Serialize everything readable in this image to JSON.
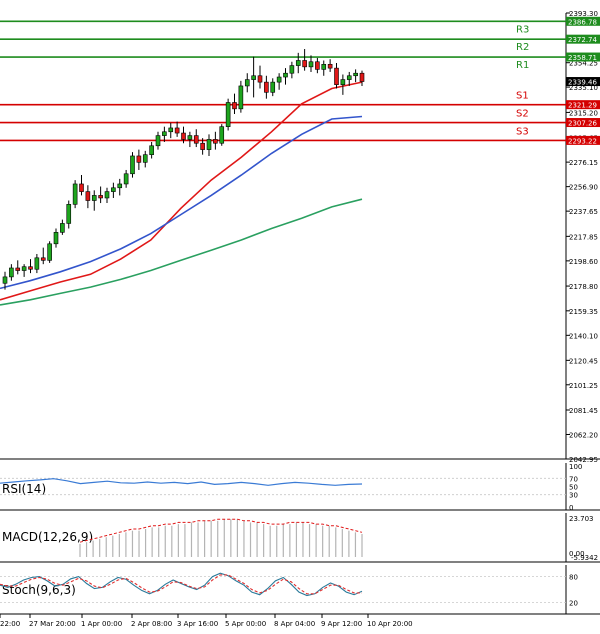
{
  "chart_data": [
    {
      "panel": "price",
      "type": "candlestick",
      "ylim": [
        2042.95,
        2393.3
      ],
      "ticks": [
        "2393.30",
        "2374.30",
        "2354.25",
        "2335.10",
        "2315.20",
        "2295.65",
        "2276.15",
        "2256.90",
        "2237.65",
        "2217.85",
        "2198.60",
        "2178.80",
        "2159.35",
        "2140.10",
        "2120.45",
        "2101.25",
        "2081.45",
        "2062.20",
        "2042.95"
      ],
      "x_tick_labels": [
        "22:00",
        "27 Mar 20:00",
        "1 Apr 00:00",
        "2 Apr 08:00",
        "3 Apr 16:00",
        "5 Apr 00:00",
        "8 Apr 04:00",
        "9 Apr 12:00",
        "10 Apr 20:00"
      ],
      "levels": [
        {
          "name": "R3",
          "value": 2386.78,
          "color": "#1e8c1e",
          "tag_bg": "#1e8c1e"
        },
        {
          "name": "R2",
          "value": 2372.74,
          "color": "#1e8c1e",
          "tag_bg": "#1e8c1e"
        },
        {
          "name": "R1",
          "value": 2358.71,
          "color": "#1e8c1e",
          "tag_bg": "#1e8c1e"
        },
        {
          "name": "S1",
          "value": 2321.29,
          "color": "#d40000",
          "tag_bg": "#d40000"
        },
        {
          "name": "S2",
          "value": 2307.26,
          "color": "#d40000",
          "tag_bg": "#d40000"
        },
        {
          "name": "S3",
          "value": 2293.22,
          "color": "#d40000",
          "tag_bg": "#d40000"
        }
      ],
      "current_price": {
        "label": "2339.46",
        "value": 2339.46
      },
      "candles": [
        [
          2181,
          2190,
          2176,
          2186
        ],
        [
          2186,
          2196,
          2183,
          2193
        ],
        [
          2193,
          2199,
          2188,
          2191
        ],
        [
          2191,
          2196,
          2186,
          2194
        ],
        [
          2194,
          2200,
          2189,
          2192
        ],
        [
          2192,
          2204,
          2189,
          2201
        ],
        [
          2201,
          2209,
          2196,
          2199
        ],
        [
          2199,
          2214,
          2197,
          2212
        ],
        [
          2212,
          2224,
          2209,
          2221
        ],
        [
          2221,
          2231,
          2219,
          2228
        ],
        [
          2228,
          2246,
          2224,
          2243
        ],
        [
          2243,
          2262,
          2240,
          2259
        ],
        [
          2259,
          2266,
          2250,
          2253
        ],
        [
          2253,
          2258,
          2240,
          2246
        ],
        [
          2246,
          2254,
          2238,
          2250
        ],
        [
          2250,
          2257,
          2244,
          2248
        ],
        [
          2248,
          2256,
          2244,
          2253
        ],
        [
          2253,
          2260,
          2248,
          2256
        ],
        [
          2256,
          2263,
          2250,
          2259
        ],
        [
          2259,
          2270,
          2256,
          2267
        ],
        [
          2267,
          2284,
          2264,
          2281
        ],
        [
          2281,
          2286,
          2270,
          2276
        ],
        [
          2276,
          2285,
          2272,
          2282
        ],
        [
          2282,
          2292,
          2279,
          2289
        ],
        [
          2289,
          2300,
          2286,
          2297
        ],
        [
          2297,
          2304,
          2292,
          2300
        ],
        [
          2300,
          2307,
          2295,
          2303
        ],
        [
          2303,
          2308,
          2296,
          2299
        ],
        [
          2299,
          2304,
          2291,
          2294
        ],
        [
          2294,
          2300,
          2288,
          2297
        ],
        [
          2297,
          2302,
          2288,
          2291
        ],
        [
          2291,
          2295,
          2282,
          2286
        ],
        [
          2286,
          2298,
          2281,
          2294
        ],
        [
          2294,
          2300,
          2286,
          2291
        ],
        [
          2291,
          2306,
          2289,
          2304
        ],
        [
          2304,
          2326,
          2301,
          2323
        ],
        [
          2323,
          2330,
          2314,
          2318
        ],
        [
          2318,
          2340,
          2315,
          2336
        ],
        [
          2336,
          2346,
          2331,
          2341
        ],
        [
          2341,
          2359,
          2327,
          2344
        ],
        [
          2344,
          2352,
          2334,
          2339
        ],
        [
          2339,
          2344,
          2326,
          2331
        ],
        [
          2331,
          2342,
          2328,
          2339
        ],
        [
          2339,
          2346,
          2333,
          2343
        ],
        [
          2343,
          2350,
          2337,
          2346
        ],
        [
          2346,
          2355,
          2342,
          2352
        ],
        [
          2352,
          2362,
          2346,
          2356
        ],
        [
          2356,
          2365,
          2348,
          2351
        ],
        [
          2351,
          2360,
          2347,
          2355
        ],
        [
          2355,
          2358,
          2346,
          2349
        ],
        [
          2349,
          2356,
          2344,
          2353
        ],
        [
          2353,
          2357,
          2347,
          2350
        ],
        [
          2350,
          2354,
          2334,
          2337
        ],
        [
          2337,
          2345,
          2329,
          2341
        ],
        [
          2341,
          2347,
          2336,
          2344
        ],
        [
          2344,
          2349,
          2339,
          2346
        ],
        [
          2346,
          2348,
          2336,
          2339.46
        ]
      ],
      "series": [
        {
          "name": "MA20",
          "color": "#e01818",
          "values": [
            2168,
            2175,
            2182,
            2188,
            2200,
            2215,
            2240,
            2262,
            2280,
            2300,
            2322,
            2334,
            2339
          ]
        },
        {
          "name": "MA50",
          "color": "#3355cc",
          "values": [
            2177,
            2183,
            2190,
            2198,
            2208,
            2220,
            2235,
            2250,
            2266,
            2283,
            2298,
            2310,
            2312
          ]
        },
        {
          "name": "MA100",
          "color": "#2aa060",
          "values": [
            2164,
            2168,
            2173,
            2178,
            2184,
            2191,
            2199,
            2207,
            2215,
            2224,
            2232,
            2241,
            2247
          ]
        }
      ]
    },
    {
      "panel": "rsi",
      "type": "line",
      "label": "RSI(14)",
      "ylim": [
        0,
        100
      ],
      "ticks": [
        "100",
        "70",
        "50",
        "30",
        "0"
      ],
      "series": [
        {
          "name": "RSI",
          "color": "#3a7bd5",
          "values": [
            58,
            61,
            64,
            66,
            69,
            64,
            57,
            60,
            63,
            59,
            58,
            61,
            58,
            60,
            57,
            61,
            55,
            57,
            60,
            57,
            53,
            57,
            60,
            58,
            55,
            53,
            55,
            56
          ]
        }
      ]
    },
    {
      "panel": "macd",
      "type": "bar",
      "label": "MACD(12,26,9)",
      "ticks": [
        "23.703",
        "0.00",
        "-5.9342"
      ],
      "histogram": [
        8,
        9,
        10,
        11,
        12,
        13,
        14,
        15,
        16,
        16,
        17,
        18,
        18,
        19,
        19,
        20,
        20,
        21,
        21,
        22,
        22,
        22,
        23,
        23,
        23,
        22,
        21,
        21,
        20,
        19,
        19,
        20,
        20,
        21,
        21,
        20,
        20,
        19,
        19,
        18,
        17,
        16,
        15,
        14
      ],
      "signal": [
        9,
        10,
        11,
        12,
        13,
        14,
        15,
        16,
        17,
        17,
        18,
        19,
        19,
        20,
        20,
        21,
        21,
        21,
        22,
        22,
        22,
        23,
        23,
        23,
        23,
        22,
        22,
        21,
        21,
        20,
        20,
        20,
        21,
        21,
        21,
        21,
        20,
        20,
        19,
        19,
        18,
        17,
        16,
        15
      ]
    },
    {
      "panel": "stoch",
      "type": "line",
      "label": "Stoch(9,6,3)",
      "ticks": [
        "80",
        "20"
      ],
      "series": [
        {
          "name": "%K",
          "color": "#2a7a9a",
          "values": [
            60,
            55,
            62,
            72,
            78,
            80,
            70,
            58,
            62,
            75,
            80,
            64,
            52,
            55,
            68,
            78,
            74,
            60,
            48,
            40,
            48,
            62,
            72,
            64,
            56,
            50,
            60,
            80,
            88,
            82,
            70,
            60,
            44,
            38,
            52,
            70,
            78,
            62,
            44,
            36,
            40,
            55,
            65,
            58,
            44,
            38,
            46
          ]
        },
        {
          "name": "%D",
          "color": "#e03030",
          "values": [
            62,
            58,
            58,
            66,
            74,
            78,
            74,
            64,
            60,
            68,
            76,
            70,
            58,
            54,
            62,
            72,
            76,
            66,
            54,
            44,
            46,
            56,
            68,
            66,
            58,
            52,
            56,
            72,
            84,
            84,
            74,
            64,
            50,
            42,
            48,
            62,
            74,
            68,
            52,
            40,
            40,
            50,
            60,
            60,
            50,
            42,
            42
          ]
        }
      ]
    }
  ]
}
